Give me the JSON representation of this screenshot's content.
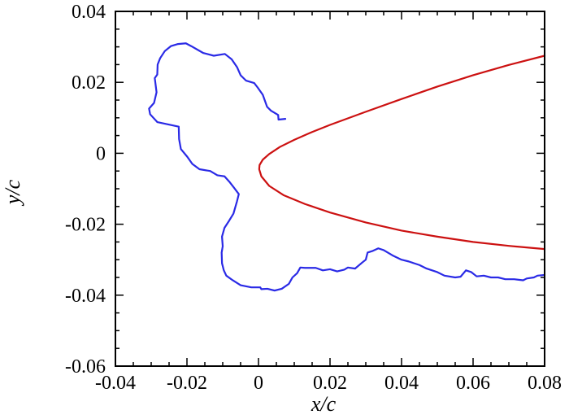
{
  "chart_data": {
    "type": "line",
    "title": "",
    "xlabel": "x/c",
    "ylabel": "y/c",
    "xlim": [
      -0.04,
      0.08
    ],
    "ylim": [
      -0.06,
      0.04
    ],
    "x_major_ticks": [
      -0.04,
      -0.02,
      0,
      0.02,
      0.04,
      0.06,
      0.08
    ],
    "x_tick_labels": [
      "-0.04",
      "-0.02",
      "0",
      "0.02",
      "0.04",
      "0.06",
      "0.08"
    ],
    "y_major_ticks": [
      -0.06,
      -0.04,
      -0.02,
      0,
      0.02,
      0.04
    ],
    "y_tick_labels": [
      "-0.06",
      "-0.04",
      "-0.02",
      "0",
      "0.02",
      "0.04"
    ],
    "minor_tick_step": {
      "x": 0.005,
      "y": 0.005
    },
    "grid": false,
    "legend": "none",
    "series": [
      {
        "color": "#cc1111",
        "points": [
          [
            0.08,
            0.0275
          ],
          [
            0.07,
            0.0249
          ],
          [
            0.06,
            0.022
          ],
          [
            0.05,
            0.0188
          ],
          [
            0.04,
            0.0153
          ],
          [
            0.03,
            0.0117
          ],
          [
            0.02,
            0.008
          ],
          [
            0.015,
            0.006
          ],
          [
            0.01,
            0.0038
          ],
          [
            0.006,
            0.0018
          ],
          [
            0.003,
            -0.0002
          ],
          [
            0.0012,
            -0.0018
          ],
          [
            0.0003,
            -0.0033
          ],
          [
            0.0002,
            -0.0045
          ],
          [
            0.0008,
            -0.0065
          ],
          [
            0.003,
            -0.0092
          ],
          [
            0.007,
            -0.0118
          ],
          [
            0.013,
            -0.0143
          ],
          [
            0.02,
            -0.0167
          ],
          [
            0.03,
            -0.0195
          ],
          [
            0.04,
            -0.0218
          ],
          [
            0.05,
            -0.0235
          ],
          [
            0.06,
            -0.025
          ],
          [
            0.07,
            -0.0261
          ],
          [
            0.08,
            -0.027
          ]
        ]
      },
      {
        "color": "#2a2ae6",
        "points": [
          [
            0.0075,
            0.0097
          ],
          [
            0.0056,
            0.0095
          ],
          [
            0.0055,
            0.0108
          ],
          [
            0.0035,
            0.012
          ],
          [
            0.0024,
            0.0131
          ],
          [
            0.0018,
            0.0148
          ],
          [
            0.0012,
            0.0165
          ],
          [
            -0.0002,
            0.0185
          ],
          [
            -0.0012,
            0.0198
          ],
          [
            -0.0035,
            0.0205
          ],
          [
            -0.005,
            0.022
          ],
          [
            -0.006,
            0.0243
          ],
          [
            -0.0075,
            0.0265
          ],
          [
            -0.0094,
            0.028
          ],
          [
            -0.0125,
            0.0275
          ],
          [
            -0.0155,
            0.0283
          ],
          [
            -0.0188,
            0.0302
          ],
          [
            -0.0203,
            0.031
          ],
          [
            -0.0225,
            0.0308
          ],
          [
            -0.0245,
            0.0302
          ],
          [
            -0.0262,
            0.0288
          ],
          [
            -0.0275,
            0.0268
          ],
          [
            -0.0282,
            0.025
          ],
          [
            -0.0283,
            0.0222
          ],
          [
            -0.029,
            0.0212
          ],
          [
            -0.0285,
            0.0172
          ],
          [
            -0.0292,
            0.0142
          ],
          [
            -0.0306,
            0.0126
          ],
          [
            -0.0303,
            0.011
          ],
          [
            -0.0283,
            0.0088
          ],
          [
            -0.0223,
            0.0075
          ],
          [
            -0.0222,
            0.004
          ],
          [
            -0.0217,
            0.0012
          ],
          [
            -0.0199,
            -0.001
          ],
          [
            -0.0185,
            -0.003
          ],
          [
            -0.0165,
            -0.0045
          ],
          [
            -0.0135,
            -0.005
          ],
          [
            -0.0115,
            -0.0062
          ],
          [
            -0.0095,
            -0.0065
          ],
          [
            -0.008,
            -0.0082
          ],
          [
            -0.007,
            -0.0095
          ],
          [
            -0.0055,
            -0.0115
          ],
          [
            -0.006,
            -0.0135
          ],
          [
            -0.007,
            -0.017
          ],
          [
            -0.0082,
            -0.019
          ],
          [
            -0.0095,
            -0.021
          ],
          [
            -0.0102,
            -0.0235
          ],
          [
            -0.01,
            -0.0262
          ],
          [
            -0.0103,
            -0.028
          ],
          [
            -0.0102,
            -0.031
          ],
          [
            -0.0097,
            -0.033
          ],
          [
            -0.009,
            -0.0345
          ],
          [
            -0.0072,
            -0.0358
          ],
          [
            -0.005,
            -0.0372
          ],
          [
            -0.002,
            -0.0378
          ],
          [
            0.0005,
            -0.0378
          ],
          [
            0.0008,
            -0.0383
          ],
          [
            0.0025,
            -0.0382
          ],
          [
            0.0045,
            -0.0387
          ],
          [
            0.0065,
            -0.0382
          ],
          [
            0.0085,
            -0.0368
          ],
          [
            0.0095,
            -0.035
          ],
          [
            0.0108,
            -0.0338
          ],
          [
            0.0117,
            -0.0322
          ],
          [
            0.013,
            -0.0323
          ],
          [
            0.016,
            -0.0323
          ],
          [
            0.018,
            -0.033
          ],
          [
            0.02,
            -0.0327
          ],
          [
            0.022,
            -0.0333
          ],
          [
            0.024,
            -0.0328
          ],
          [
            0.025,
            -0.0322
          ],
          [
            0.027,
            -0.0325
          ],
          [
            0.029,
            -0.0308
          ],
          [
            0.03,
            -0.03
          ],
          [
            0.0305,
            -0.028
          ],
          [
            0.032,
            -0.0275
          ],
          [
            0.0335,
            -0.0268
          ],
          [
            0.035,
            -0.0273
          ],
          [
            0.0375,
            -0.0288
          ],
          [
            0.04,
            -0.03
          ],
          [
            0.042,
            -0.0305
          ],
          [
            0.045,
            -0.0315
          ],
          [
            0.047,
            -0.0325
          ],
          [
            0.05,
            -0.0335
          ],
          [
            0.052,
            -0.0345
          ],
          [
            0.055,
            -0.035
          ],
          [
            0.0565,
            -0.0348
          ],
          [
            0.058,
            -0.033
          ],
          [
            0.0595,
            -0.0335
          ],
          [
            0.061,
            -0.0347
          ],
          [
            0.063,
            -0.0345
          ],
          [
            0.065,
            -0.035
          ],
          [
            0.067,
            -0.035
          ],
          [
            0.069,
            -0.0355
          ],
          [
            0.0715,
            -0.0355
          ],
          [
            0.074,
            -0.0358
          ],
          [
            0.075,
            -0.0353
          ],
          [
            0.077,
            -0.035
          ],
          [
            0.078,
            -0.0345
          ],
          [
            0.08,
            -0.0343
          ]
        ]
      }
    ]
  }
}
